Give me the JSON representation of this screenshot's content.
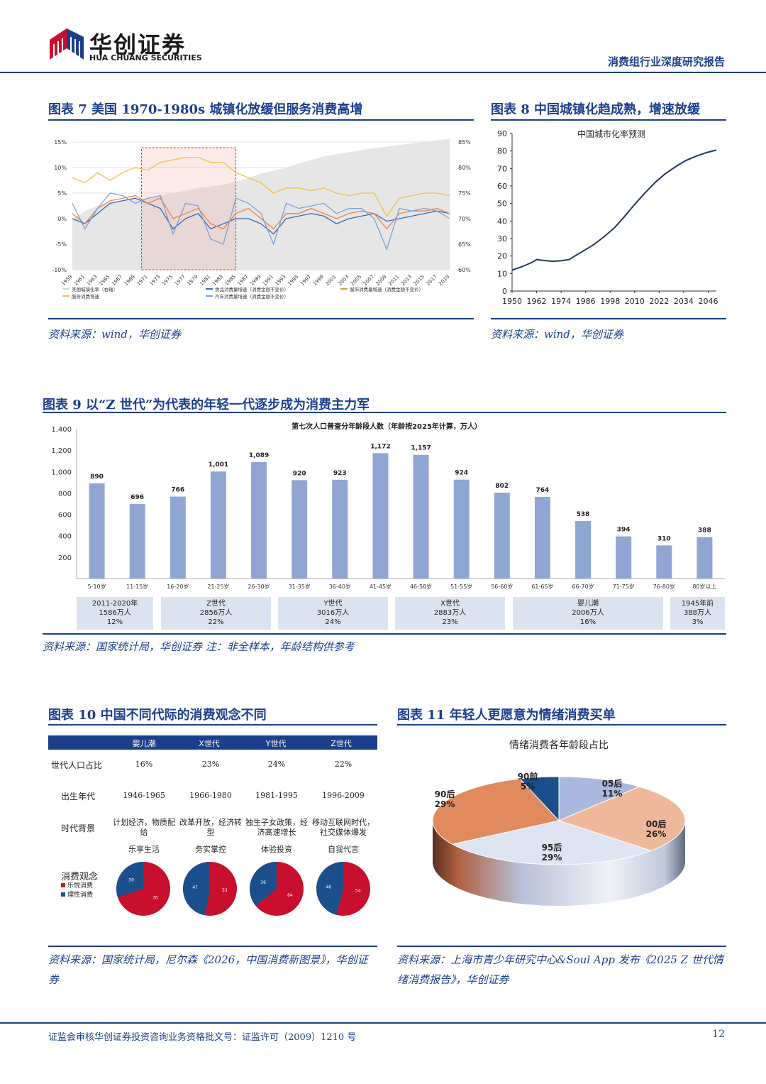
{
  "header": {
    "brand_cn": "华创证券",
    "brand_en": "HUA CHUANG SECURITIES",
    "report_title": "消费组行业深度研究报告"
  },
  "figures": {
    "fig7": {
      "title": "图表 7   美国 1970-1980s 城镇化放缓但服务消费高增",
      "source": "资料来源：wind，华创证券",
      "legend": [
        "美国城镇化率（右轴）",
        "食品消费量增速（消费金额不变价）",
        "服饰消费量增速（消费金额不变价）",
        "服务消费增速",
        "汽车消费量增速（消费金额不变价）"
      ]
    },
    "fig8": {
      "title": "图表 8   中国城镇化趋成熟，增速放缓",
      "source": "资料来源：wind，华创证券"
    },
    "fig9": {
      "title": "图表 9   以“Z 世代”为代表的年轻一代逐步成为消费主力军",
      "source": "资料来源：国家统计局，华创证券  注：非全样本，年龄结构供参考",
      "groups": [
        {
          "line1": "2011-2020年",
          "line2": "1586万人",
          "line3": "12%"
        },
        {
          "line1": "Z世代",
          "line2": "2856万人",
          "line3": "22%"
        },
        {
          "line1": "Y世代",
          "line2": "3016万人",
          "line3": "24%"
        },
        {
          "line1": "X世代",
          "line2": "2883万人",
          "line3": "23%"
        },
        {
          "line1": "婴儿潮",
          "line2": "2006万人",
          "line3": "16%"
        },
        {
          "line1": "1945年前",
          "line2": "388万人",
          "line3": "3%"
        }
      ]
    },
    "fig10": {
      "title": "图表 10   中国不同代际的消费观念不同",
      "source": "资料来源：国家统计局，尼尔森《2026，中国消费新图景》，华创证券",
      "headers": [
        "婴儿潮",
        "X世代",
        "Y世代",
        "Z世代"
      ],
      "row_labels": [
        "世代人口占比",
        "出生年代",
        "时代背景",
        "消费观念"
      ],
      "share": [
        "16%",
        "23%",
        "24%",
        "22%"
      ],
      "birth": [
        "1946-1965",
        "1966-1980",
        "1981-1995",
        "1996-2009"
      ],
      "background": [
        "计划经济，物质配给",
        "改革开放，经济转型",
        "独生子女政策，经济高速增长",
        "移动互联网时代，社交媒体爆发"
      ],
      "motto": [
        "乐享生活",
        "务实掌控",
        "体验投资",
        "自我代言"
      ],
      "legend": [
        "乐悦消费",
        "理性消费"
      ],
      "pies": [
        {
          "red": 70,
          "blue": 30
        },
        {
          "red": 53,
          "blue": 47
        },
        {
          "red": 64,
          "blue": 36
        },
        {
          "red": 54,
          "blue": 46
        }
      ]
    },
    "fig11": {
      "title": "图表 11   年轻人更愿意为情绪消费买单",
      "source": "资料来源：上海市青少年研究中心&Soul App 发布《2025 Z 世代情绪消费报告》，华创证券"
    }
  },
  "chart_data": [
    {
      "type": "line",
      "chart_id": "fig7",
      "x": [
        "1959",
        "1961",
        "1963",
        "1965",
        "1967",
        "1969",
        "1971",
        "1973",
        "1975",
        "1977",
        "1979",
        "1981",
        "1983",
        "1985",
        "1987",
        "1989",
        "1991",
        "1993",
        "1995",
        "1997",
        "1999",
        "2001",
        "2003",
        "2005",
        "2007",
        "2009",
        "2011",
        "2013",
        "2015",
        "2017",
        "2019"
      ],
      "yleft_ticks": [
        "15%",
        "10%",
        "5%",
        "0%",
        "-5%",
        "-10%"
      ],
      "yright_ticks": [
        "85%",
        "80%",
        "75%",
        "70%",
        "65%",
        "60%"
      ],
      "ylim_left": [
        -10,
        15
      ],
      "ylim_right": [
        60,
        85
      ],
      "highlight_range": [
        "1970",
        "1985"
      ],
      "series": [
        {
          "name": "美国城镇化率（右轴）",
          "axis": "right",
          "values": [
            70,
            71.5,
            72.5,
            73.2,
            73.6,
            73.8,
            74,
            74.5,
            75,
            75.5,
            76,
            76.3,
            76.6,
            77.2,
            78,
            78.8,
            79.4,
            80,
            80.8,
            81.5,
            82.2,
            82.6,
            83,
            83.4,
            83.8,
            84.1,
            84.4,
            84.7,
            85,
            85.3,
            85.6
          ]
        },
        {
          "name": "服务消费增速",
          "axis": "left",
          "values": [
            8,
            7,
            9,
            7.5,
            9,
            10,
            9.5,
            11,
            11.5,
            12,
            12,
            11,
            11,
            9,
            8,
            7,
            5,
            6,
            6,
            5.5,
            6,
            5,
            4.5,
            5,
            5,
            0.5,
            4,
            4.5,
            5,
            5,
            4.5
          ]
        },
        {
          "name": "食品消费量增速（消费金额不变价）",
          "axis": "left",
          "values": [
            0,
            -1,
            1,
            3,
            3.5,
            4,
            3,
            2,
            -2,
            0,
            1,
            -2,
            -1,
            0,
            0,
            -1,
            -3,
            0,
            0.5,
            1,
            0.5,
            -1,
            0,
            0.5,
            1,
            -0.5,
            0,
            0.5,
            1,
            1.5,
            1
          ]
        },
        {
          "name": "服饰消费量增速（消费金额不变价）",
          "axis": "left",
          "values": [
            1,
            -1,
            2,
            3.5,
            4,
            4.5,
            3,
            4,
            0,
            1,
            2,
            -1,
            -2,
            1,
            2,
            0,
            -2,
            1,
            1,
            2,
            1,
            0,
            1,
            1.5,
            1,
            -2,
            1,
            1.5,
            1.5,
            2,
            1
          ]
        },
        {
          "name": "汽车消费量增速（消费金额不变价）",
          "axis": "left",
          "values": [
            3,
            -2,
            2,
            5,
            4.5,
            3,
            4,
            4.5,
            -3,
            3,
            2.5,
            -4,
            -5,
            4,
            3,
            1,
            -5,
            3,
            2,
            2.5,
            3,
            1,
            2,
            2,
            0,
            -6,
            2,
            1.5,
            2,
            1.5,
            0
          ]
        }
      ]
    },
    {
      "type": "line",
      "chart_id": "fig8",
      "title": "中国城市化率预测",
      "x": [
        1950,
        1955,
        1960,
        1962,
        1965,
        1970,
        1974,
        1978,
        1980,
        1985,
        1990,
        1995,
        2000,
        2005,
        2010,
        2015,
        2020,
        2025,
        2030,
        2035,
        2040,
        2045,
        2050
      ],
      "x_ticks": [
        "1950",
        "1962",
        "1974",
        "1986",
        "1998",
        "2010",
        "2022",
        "2034",
        "2046"
      ],
      "ylim": [
        0,
        90
      ],
      "y_ticks": [
        0,
        10,
        20,
        30,
        40,
        50,
        60,
        70,
        80,
        90
      ],
      "series": [
        {
          "values": [
            12,
            14,
            16.5,
            18,
            17.5,
            17,
            17.3,
            18,
            19.5,
            23,
            26.5,
            31,
            36,
            42.5,
            49.5,
            56,
            62,
            67,
            71,
            74.5,
            77,
            79,
            80.5
          ]
        }
      ]
    },
    {
      "type": "bar",
      "chart_id": "fig9",
      "title": "第七次人口普查分年龄段人数（年龄按2025年计算，万人）",
      "categories": [
        "5-10岁",
        "11-15岁",
        "16-20岁",
        "21-25岁",
        "26-30岁",
        "31-35岁",
        "36-40岁",
        "41-45岁",
        "46-50岁",
        "51-55岁",
        "56-60岁",
        "61-65岁",
        "66-70岁",
        "71-75岁",
        "76-80岁",
        "80岁以上"
      ],
      "values": [
        890,
        696,
        766,
        1001,
        1089,
        920,
        923,
        1172,
        1157,
        924,
        802,
        764,
        538,
        394,
        310,
        388
      ],
      "value_labels": [
        "890",
        "696",
        "766",
        "1,001",
        "1,089",
        "920",
        "923",
        "1,172",
        "1,157",
        "924",
        "802",
        "764",
        "538",
        "394",
        "310",
        "388"
      ],
      "ylim": [
        0,
        1400
      ],
      "y_ticks": [
        "200",
        "400",
        "600",
        "800",
        "1,000",
        "1,200",
        "1,400"
      ]
    },
    {
      "type": "pie",
      "chart_id": "fig11",
      "title": "情绪消费各年龄段占比",
      "categories": [
        "05后",
        "00后",
        "95后",
        "90后",
        "90前"
      ],
      "values": [
        11,
        26,
        29,
        29,
        5
      ],
      "labels": [
        "11%",
        "26%",
        "29%",
        "29%",
        "5%"
      ],
      "colors": [
        "#a9b8dc",
        "#f0b89a",
        "#dfe4f2",
        "#e08a5e",
        "#1a4f8b"
      ]
    }
  ],
  "footer": {
    "license": "证监会审核华创证券投资咨询业务资格批文号：证监许可（2009）1210 号",
    "page": "12"
  }
}
